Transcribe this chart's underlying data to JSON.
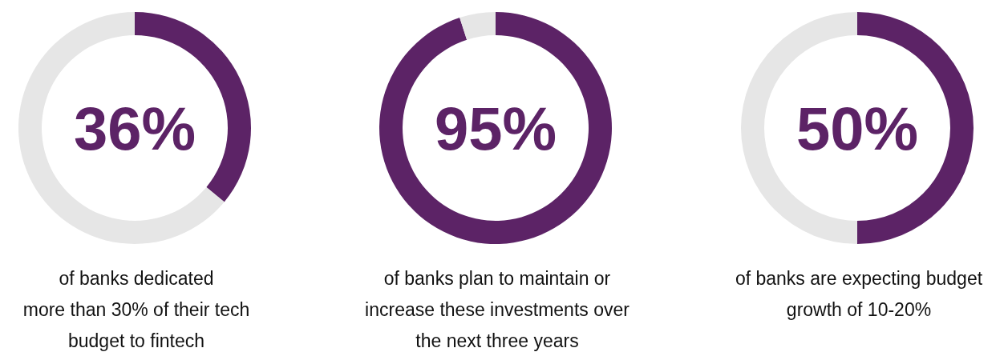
{
  "chart_data": [
    {
      "type": "donut",
      "categories": [
        null,
        null
      ],
      "values": [
        36,
        64
      ],
      "colors": [
        "#5c2366",
        "#e6e6e6"
      ],
      "annotations": [
        "36%",
        "of banks dedicated\nmore than 30% of their tech\nbudget to fintech"
      ]
    },
    {
      "type": "donut",
      "categories": [
        null,
        null
      ],
      "values": [
        95,
        5
      ],
      "colors": [
        "#5c2366",
        "#e6e6e6"
      ],
      "annotations": [
        "95%",
        "of banks plan to maintain or\nincrease these investments over\nthe next three years"
      ]
    },
    {
      "type": "donut",
      "categories": [
        null,
        null
      ],
      "values": [
        50,
        50
      ],
      "colors": [
        "#5c2366",
        "#e6e6e6"
      ],
      "annotations": [
        "50%",
        "of banks are expecting budget\ngrowth of 10-20%"
      ]
    }
  ]
}
